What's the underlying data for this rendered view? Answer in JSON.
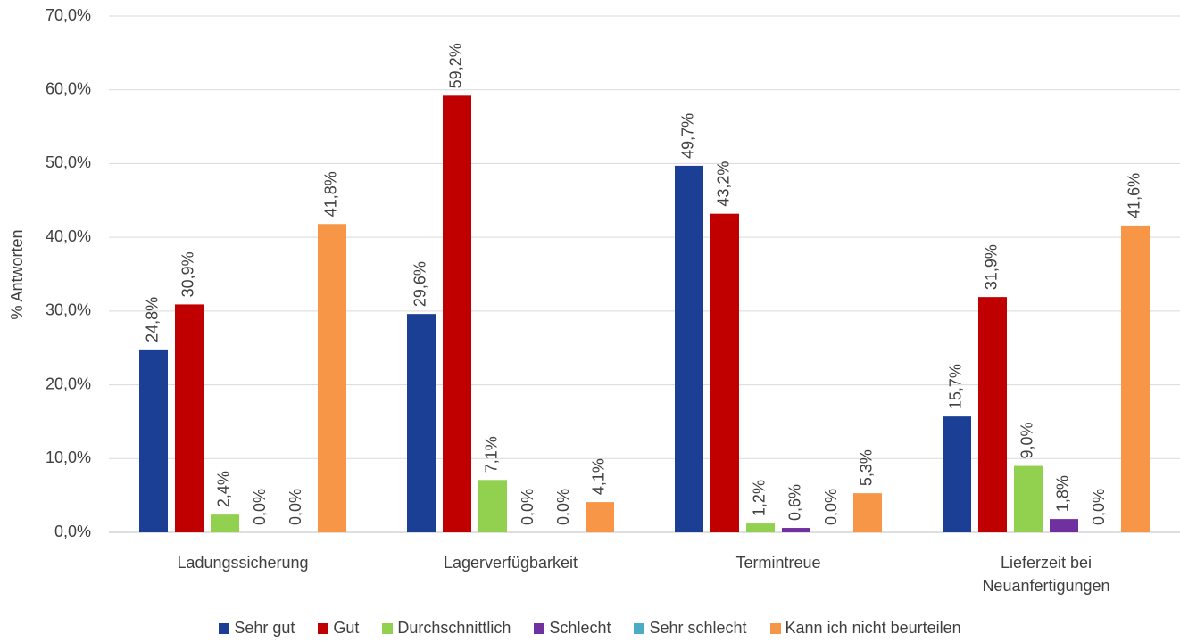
{
  "chart_data": {
    "type": "bar",
    "y_label": "% Antworten",
    "categories": [
      "Ladungssicherung",
      "Lagerverfügbarkeit",
      "Termintreue",
      "Lieferzeit bei Neuanfertigungen"
    ],
    "series": [
      {
        "name": "Sehr gut",
        "color": "#1a3f94",
        "values": [
          24.8,
          29.6,
          49.7,
          15.7
        ],
        "value_labels": [
          "24,8%",
          "29,6%",
          "49,7%",
          "15,7%"
        ]
      },
      {
        "name": "Gut",
        "color": "#c00000",
        "values": [
          30.9,
          59.2,
          43.2,
          31.9
        ],
        "value_labels": [
          "30,9%",
          "59,2%",
          "43,2%",
          "31,9%"
        ]
      },
      {
        "name": "Durchschnittlich",
        "color": "#92d050",
        "values": [
          2.4,
          7.1,
          1.2,
          9.0
        ],
        "value_labels": [
          "2,4%",
          "7,1%",
          "1,2%",
          "9,0%"
        ]
      },
      {
        "name": "Schlecht",
        "color": "#7030a0",
        "values": [
          0,
          0,
          0.6,
          1.8
        ],
        "value_labels": [
          "0,0%",
          "0,0%",
          "0,6%",
          "1,8%"
        ]
      },
      {
        "name": "Sehr schlecht",
        "color": "#4bacc6",
        "values": [
          0,
          0,
          0,
          0
        ],
        "value_labels": [
          "0,0%",
          "0,0%",
          "0,0%",
          "0,0%"
        ]
      },
      {
        "name": "Kann ich nicht beurteilen",
        "color": "#f79646",
        "values": [
          41.8,
          4.1,
          5.3,
          41.6
        ],
        "value_labels": [
          "41,8%",
          "4,1%",
          "5,3%",
          "41,6%"
        ]
      }
    ],
    "ylim": [
      0,
      70
    ],
    "yticks": [
      {
        "value": 0,
        "label": "0,0%"
      },
      {
        "value": 10,
        "label": "10,0%"
      },
      {
        "value": 20,
        "label": "20,0%"
      },
      {
        "value": 30,
        "label": "30,0%"
      },
      {
        "value": 40,
        "label": "40,0%"
      },
      {
        "value": 50,
        "label": "50,0%"
      },
      {
        "value": 60,
        "label": "60,0%"
      },
      {
        "value": 70,
        "label": "70,0%"
      }
    ],
    "grid": true,
    "legend": "bottom"
  }
}
